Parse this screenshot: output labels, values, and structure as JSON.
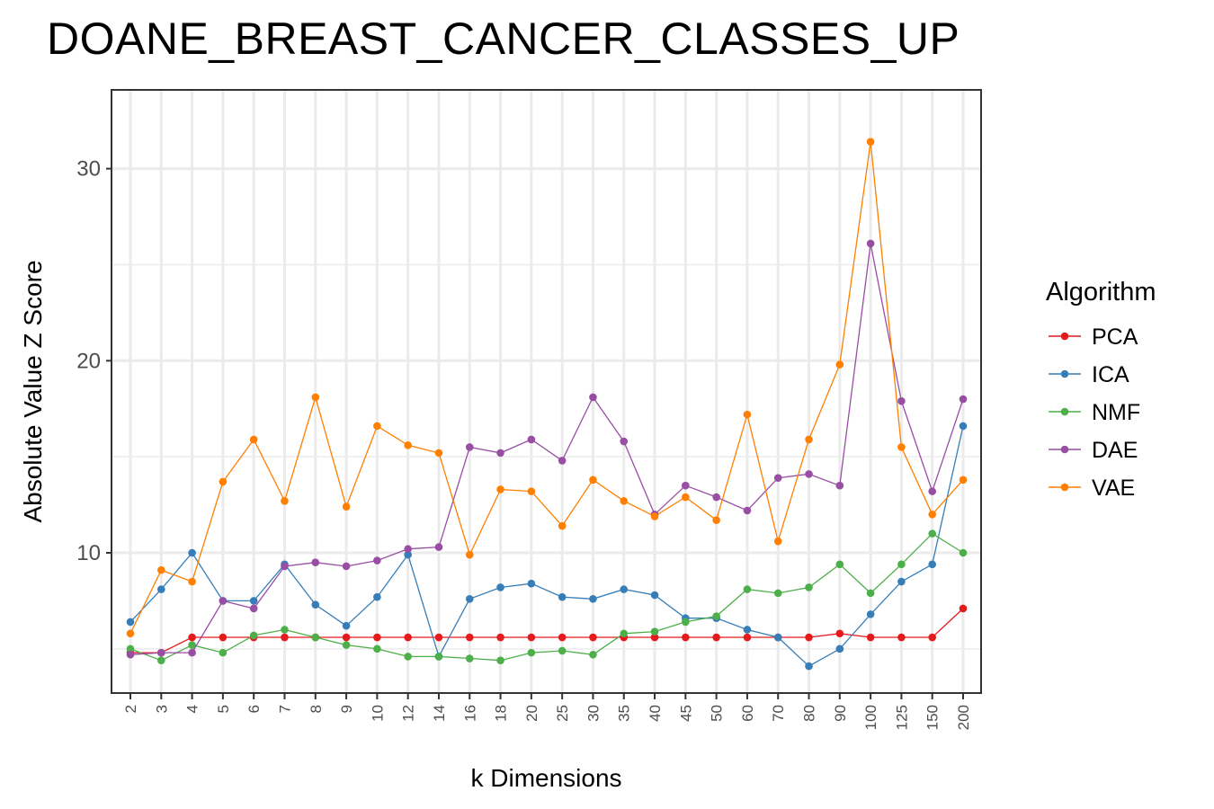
{
  "chart_data": {
    "type": "line",
    "title": "DOANE_BREAST_CANCER_CLASSES_UP",
    "xlabel": "k Dimensions",
    "ylabel": "Absolute Value Z Score",
    "categories": [
      "2",
      "3",
      "4",
      "5",
      "6",
      "7",
      "8",
      "9",
      "10",
      "12",
      "14",
      "16",
      "18",
      "20",
      "25",
      "30",
      "35",
      "40",
      "45",
      "50",
      "60",
      "70",
      "80",
      "90",
      "100",
      "125",
      "150",
      "200"
    ],
    "ylim": [
      2.7,
      34.1
    ],
    "yticks": [
      10,
      20,
      30
    ],
    "grid": true,
    "legend": {
      "title": "Algorithm",
      "position": "right"
    },
    "series": [
      {
        "name": "PCA",
        "color": "#e41a1c",
        "values": [
          4.8,
          4.8,
          5.6,
          5.6,
          5.6,
          5.6,
          5.6,
          5.6,
          5.6,
          5.6,
          5.6,
          5.6,
          5.6,
          5.6,
          5.6,
          5.6,
          5.6,
          5.6,
          5.6,
          5.6,
          5.6,
          5.6,
          5.6,
          5.8,
          5.6,
          5.6,
          5.6,
          7.1
        ]
      },
      {
        "name": "ICA",
        "color": "#377eb8",
        "values": [
          6.4,
          8.1,
          10.0,
          7.5,
          7.5,
          9.4,
          7.3,
          6.2,
          7.7,
          9.9,
          4.6,
          7.6,
          8.2,
          8.4,
          7.7,
          7.6,
          8.1,
          7.8,
          6.6,
          6.6,
          6.0,
          5.6,
          4.1,
          5.0,
          6.8,
          8.5,
          9.4,
          16.6
        ]
      },
      {
        "name": "NMF",
        "color": "#4daf4a",
        "values": [
          5.0,
          4.4,
          5.2,
          4.8,
          5.7,
          6.0,
          5.6,
          5.2,
          5.0,
          4.6,
          4.6,
          4.5,
          4.4,
          4.8,
          4.9,
          4.7,
          5.8,
          5.9,
          6.4,
          6.7,
          8.1,
          7.9,
          8.2,
          9.4,
          7.9,
          9.4,
          11.0,
          10.0
        ]
      },
      {
        "name": "DAE",
        "color": "#984ea3",
        "values": [
          4.7,
          4.8,
          4.8,
          7.5,
          7.1,
          9.3,
          9.5,
          9.3,
          9.6,
          10.2,
          10.3,
          15.5,
          15.2,
          15.9,
          14.8,
          18.1,
          15.8,
          12.0,
          13.5,
          12.9,
          12.2,
          13.9,
          14.1,
          13.5,
          26.1,
          17.9,
          13.2,
          18.0
        ]
      },
      {
        "name": "VAE",
        "color": "#ff7f00",
        "values": [
          5.8,
          9.1,
          8.5,
          13.7,
          15.9,
          12.7,
          18.1,
          12.4,
          16.6,
          15.6,
          15.2,
          9.9,
          13.3,
          13.2,
          11.4,
          13.8,
          12.7,
          11.9,
          12.9,
          11.7,
          17.2,
          10.6,
          15.9,
          19.8,
          31.4,
          15.5,
          12.0,
          13.8
        ]
      }
    ]
  }
}
